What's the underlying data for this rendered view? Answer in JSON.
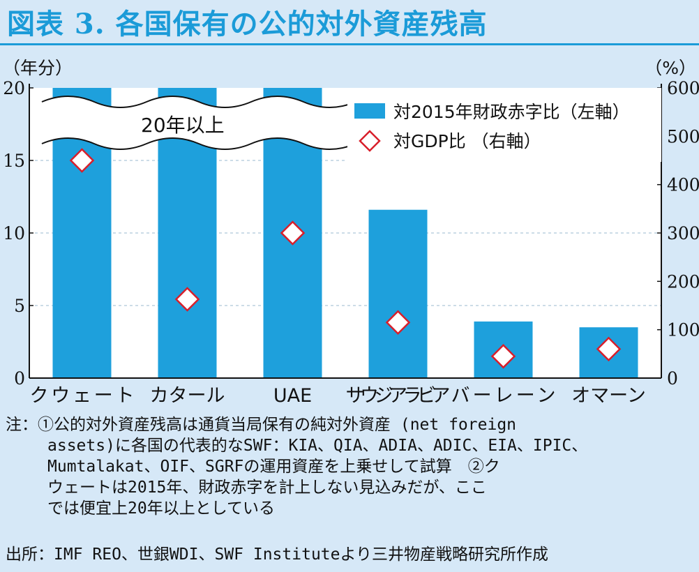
{
  "title": "図表 3. 各国保有の公的対外資産残高",
  "chart_data": {
    "type": "bar",
    "categories": [
      "クウェート",
      "カタール",
      "UAE",
      "サウジアラビア",
      "バーレーン",
      "オマーン"
    ],
    "series": [
      {
        "name": "対2015年財政赤字比（左軸）",
        "type": "bar",
        "axis": "left",
        "values": [
          20,
          20,
          20,
          11.6,
          3.9,
          3.5
        ],
        "color": "#1ea0dc"
      },
      {
        "name": "対GDP比 （右軸）",
        "type": "scatter",
        "marker": "diamond",
        "axis": "right",
        "values": [
          450,
          163,
          300,
          115,
          45,
          60
        ],
        "color": "#d81e2a"
      }
    ],
    "left_axis": {
      "unit_label": "（年分）",
      "ylim": [
        0,
        20
      ],
      "ticks": [
        0,
        5,
        10,
        15,
        20
      ]
    },
    "right_axis": {
      "unit_label": "（%）",
      "ylim": [
        0,
        600
      ],
      "ticks": [
        0,
        100,
        200,
        300,
        400,
        500,
        600
      ]
    },
    "break_annotation": "20年以上",
    "grid": true,
    "legend_position": "top-right"
  },
  "notes": {
    "prefix": "注：",
    "first_line": "①公的対外資産残高は通貨当局保有の純対外資産 (net foreign",
    "lines": [
      "assets)に各国の代表的なSWF：KIA、QIA、ADIA、ADIC、EIA、IPIC、",
      "Mumtalakat、OIF、SGRFの運用資産を上乗せして試算　②ク",
      "ウェートは2015年、財政赤字を計上しない見込みだが、ここ",
      "では便宜上20年以上としている"
    ]
  },
  "source": "出所：IMF REO、世銀WDI、SWF Instituteより三井物産戦略研究所作成"
}
